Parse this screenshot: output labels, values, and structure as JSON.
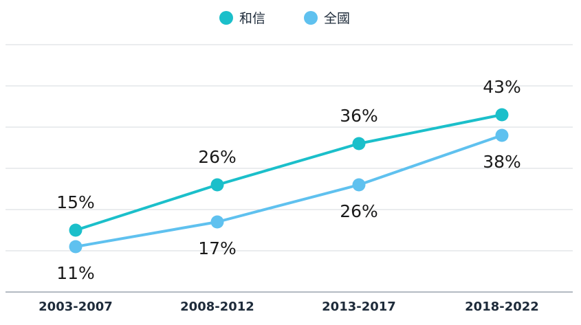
{
  "chart_data": {
    "type": "line",
    "categories": [
      "2003-2007",
      "2008-2012",
      "2013-2017",
      "2018-2022"
    ],
    "series": [
      {
        "name": "和信",
        "values": [
          15,
          26,
          36,
          43
        ],
        "color": "#1bbfca",
        "label_position": "above"
      },
      {
        "name": "全國",
        "values": [
          11,
          17,
          26,
          38
        ],
        "color": "#5fc1ef",
        "label_position": "below"
      }
    ],
    "value_suffix": "%",
    "ylim": [
      0,
      60
    ],
    "grid": true,
    "legend": "top-center"
  }
}
